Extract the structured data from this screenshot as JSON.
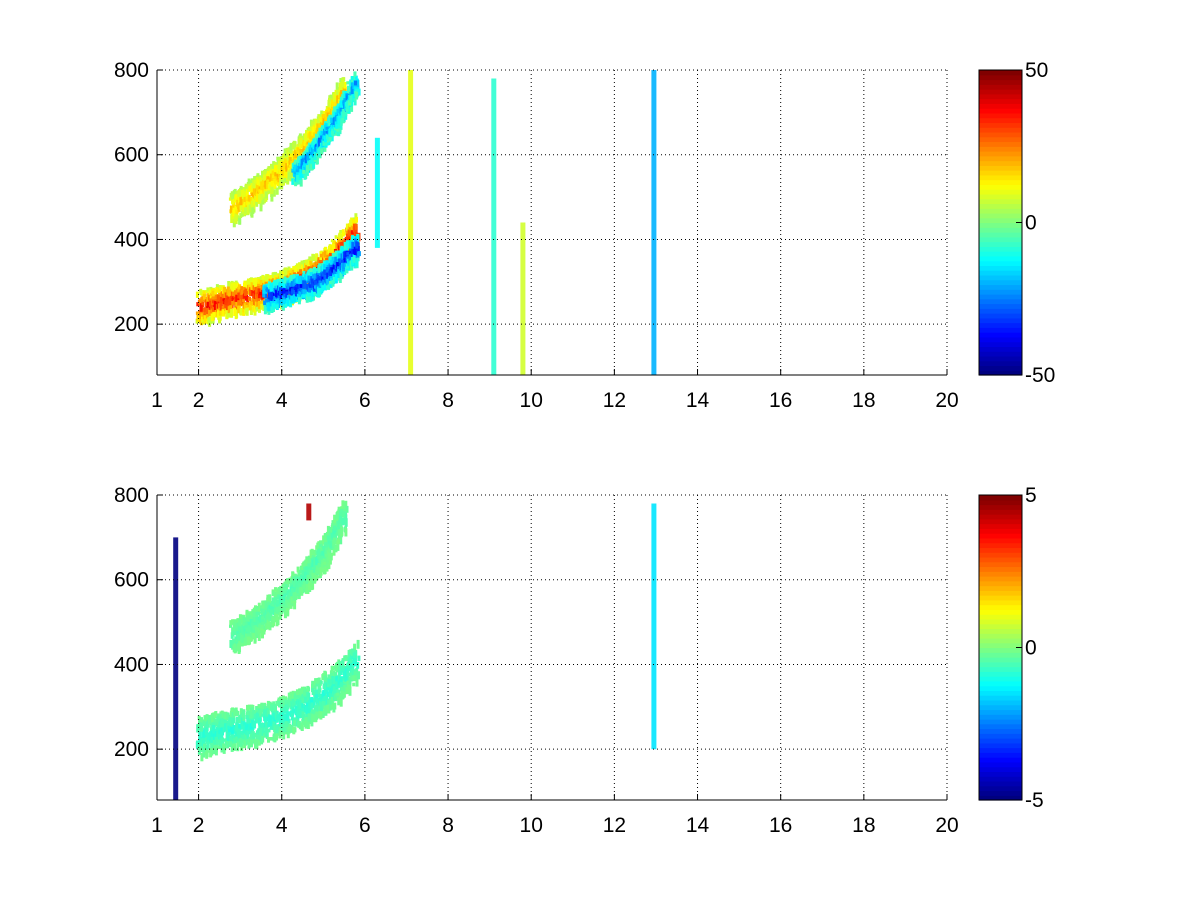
{
  "chart_data": [
    {
      "type": "heatmap",
      "xlim": [
        1,
        20
      ],
      "ylim": [
        80,
        800
      ],
      "xticks": [
        1,
        2,
        4,
        6,
        8,
        10,
        12,
        14,
        16,
        18,
        20
      ],
      "yticks": [
        200,
        400,
        600,
        800
      ],
      "grid": true,
      "colormap": "jet",
      "colorbar": {
        "range": [
          -50,
          50
        ],
        "ticks": [
          -50,
          0,
          50
        ],
        "placement": "right"
      },
      "ridges": [
        {
          "x": [
            2.0,
            2.6,
            3.3,
            4.0,
            4.6,
            5.2,
            5.8
          ],
          "y": [
            245,
            262,
            275,
            292,
            318,
            360,
            430
          ],
          "value": 42,
          "width": 32
        },
        {
          "x": [
            3.6,
            4.2,
            4.8,
            5.3,
            5.8
          ],
          "y": [
            270,
            285,
            305,
            340,
            390
          ],
          "value": -42,
          "width": 26
        },
        {
          "x": [
            2.8,
            3.4,
            4.0,
            4.5,
            5.0,
            5.5
          ],
          "y": [
            480,
            520,
            570,
            620,
            680,
            760
          ],
          "value": 22,
          "width": 30
        },
        {
          "x": [
            4.3,
            4.8,
            5.3,
            5.8
          ],
          "y": [
            560,
            620,
            690,
            780
          ],
          "value": -28,
          "width": 22
        }
      ],
      "stripes": [
        {
          "x": 6.3,
          "y": [
            380,
            640
          ],
          "value": -12
        },
        {
          "x": 7.1,
          "y": [
            80,
            800
          ],
          "value": 10
        },
        {
          "x": 9.1,
          "y": [
            80,
            780
          ],
          "value": -8
        },
        {
          "x": 9.8,
          "y": [
            80,
            440
          ],
          "value": 8
        },
        {
          "x": 12.95,
          "y": [
            80,
            800
          ],
          "value": -20
        }
      ]
    },
    {
      "type": "heatmap",
      "xlim": [
        1,
        20
      ],
      "ylim": [
        80,
        800
      ],
      "xticks": [
        1,
        2,
        4,
        6,
        8,
        10,
        12,
        14,
        16,
        18,
        20
      ],
      "yticks": [
        200,
        400,
        600,
        800
      ],
      "grid": true,
      "colormap": "jet",
      "colorbar": {
        "range": [
          -5,
          5
        ],
        "ticks": [
          -5,
          0,
          5
        ],
        "placement": "right"
      },
      "ridges": [
        {
          "x": [
            2.0,
            2.6,
            3.3,
            4.0,
            4.6,
            5.2,
            5.8
          ],
          "y": [
            235,
            250,
            262,
            282,
            310,
            350,
            420
          ],
          "value": -1,
          "width": 38
        },
        {
          "x": [
            2.8,
            3.4,
            4.0,
            4.5,
            5.0,
            5.5
          ],
          "y": [
            470,
            510,
            560,
            610,
            670,
            760
          ],
          "value": -0.6,
          "width": 30
        }
      ],
      "stripes": [
        {
          "x": 1.45,
          "y": [
            80,
            700
          ],
          "value": -5
        },
        {
          "x": 12.95,
          "y": [
            200,
            780
          ],
          "value": -1.5
        },
        {
          "x": 4.65,
          "y": [
            740,
            780
          ],
          "value": 4.5
        }
      ]
    }
  ]
}
